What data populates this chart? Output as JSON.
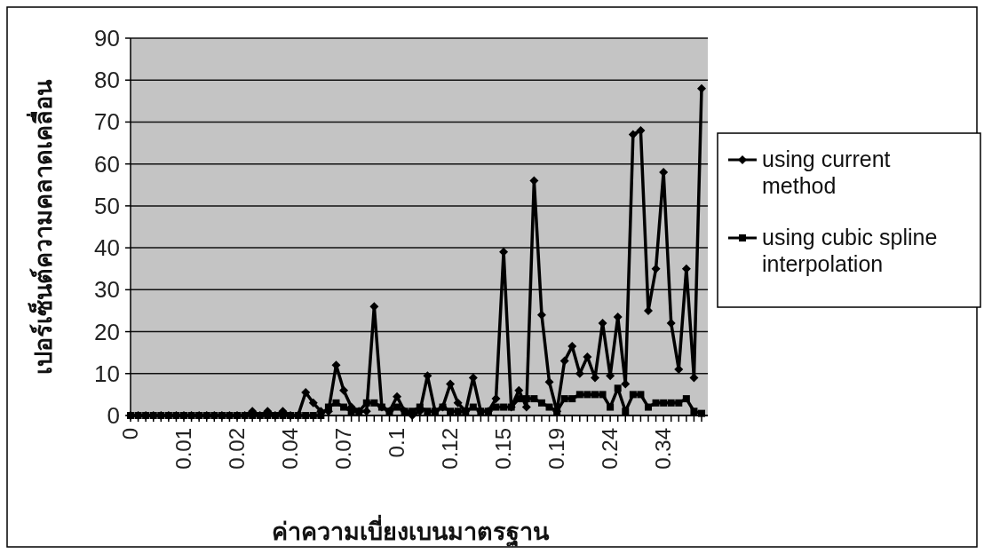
{
  "chart_data": {
    "type": "line",
    "xlabel": "ค่าความเบี่ยงเบนมาตรฐาน",
    "ylabel": "เปอร์เซ็นต์ความคลาดเคลื่อน",
    "categories": [
      "0",
      null,
      null,
      null,
      null,
      null,
      null,
      "0.01",
      null,
      null,
      null,
      null,
      null,
      null,
      "0.02",
      null,
      null,
      null,
      null,
      null,
      null,
      "0.04",
      null,
      null,
      null,
      null,
      null,
      null,
      "0.07",
      null,
      null,
      null,
      null,
      null,
      null,
      "0.1",
      null,
      null,
      null,
      null,
      null,
      null,
      "0.12",
      null,
      null,
      null,
      null,
      null,
      null,
      "0.15",
      null,
      null,
      null,
      null,
      null,
      null,
      "0.19",
      null,
      null,
      null,
      null,
      null,
      null,
      "0.24",
      null,
      null,
      null,
      null,
      null,
      null,
      "0.34",
      null,
      null,
      null,
      null,
      null
    ],
    "series": [
      {
        "name": "using current method",
        "color": "#000000",
        "marker": "diamond",
        "values": [
          0,
          0,
          0,
          0,
          0,
          0,
          0,
          0,
          0,
          0,
          0,
          0,
          0,
          0,
          0,
          0,
          1,
          0,
          1,
          0,
          1,
          0,
          0,
          5.5,
          3,
          1,
          1,
          12,
          6,
          2,
          1,
          1,
          26,
          2,
          1,
          4.5,
          1,
          0,
          1,
          9.5,
          1,
          2,
          7.5,
          3,
          1,
          9,
          1,
          1,
          4,
          39,
          2,
          6,
          2,
          56,
          24,
          8,
          1,
          13,
          16.5,
          10,
          14,
          9,
          22,
          9.5,
          23.5,
          7.5,
          67,
          68,
          25,
          35,
          58,
          22,
          11,
          35,
          9,
          78
        ]
      },
      {
        "name": "using cubic spline interpolation",
        "color": "#000000",
        "marker": "square",
        "values": [
          0,
          0,
          0,
          0,
          0,
          0,
          0,
          0,
          0,
          0,
          0,
          0,
          0,
          0,
          0,
          0,
          0,
          0,
          0,
          0,
          0,
          0,
          0,
          0,
          0,
          0,
          2,
          3,
          2,
          1,
          1,
          3,
          3,
          2,
          1,
          2,
          1,
          1,
          2,
          1,
          1,
          2,
          1,
          1,
          1,
          2,
          1,
          1,
          2,
          2,
          2,
          4,
          4,
          4,
          3,
          2,
          1,
          4,
          4,
          5,
          5,
          5,
          5,
          2,
          6.5,
          1,
          5,
          5,
          2,
          3,
          3,
          3,
          3,
          4,
          1,
          0.5
        ]
      }
    ],
    "ylim": [
      0,
      90
    ],
    "yticks": [
      0,
      10,
      20,
      30,
      40,
      50,
      60,
      70,
      80,
      90
    ],
    "grid": "y",
    "legend": "right",
    "line_style": "solid"
  }
}
